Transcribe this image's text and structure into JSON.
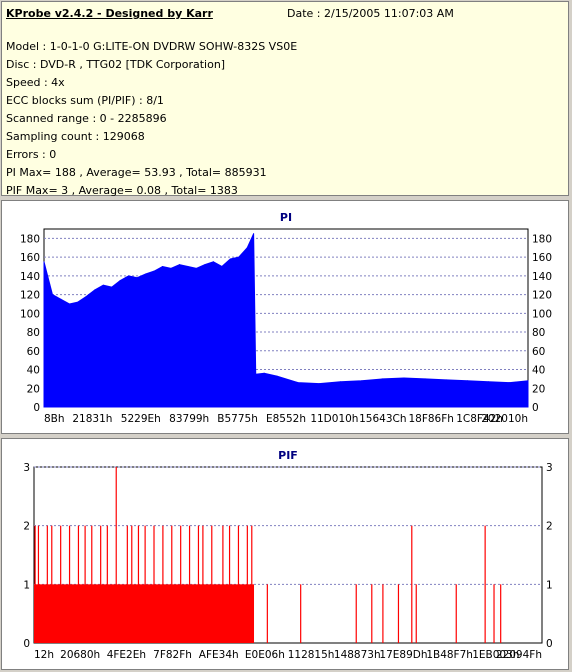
{
  "info": {
    "title": "KProbe v2.4.2 - Designed by Karr",
    "date": "Date : 2/15/2005 11:07:03 AM",
    "lines": [
      "Model : 1-0-1-0 G:LITE-ON DVDRW SOHW-832S  VS0E",
      "Disc : DVD-R , TTG02 [TDK Corporation]",
      "Speed : 4x",
      "ECC blocks sum (PI/PIF) : 8/1",
      "Scanned range : 0 - 2285896",
      "Sampling count : 129068",
      "Errors : 0",
      "PI Max= 188 , Average= 53.93 , Total= 885931",
      "PIF Max= 3 , Average= 0.08 , Total= 1383"
    ]
  },
  "chart_data": [
    {
      "type": "area",
      "title": "PI",
      "color": "#0000ff",
      "ylim": [
        0,
        190
      ],
      "yticks": [
        0,
        20,
        40,
        60,
        80,
        100,
        120,
        140,
        160,
        180
      ],
      "xlim": [
        0,
        2285896
      ],
      "xtick_labels": [
        "8Bh",
        "21831h",
        "5229Eh",
        "83799h",
        "B5775h",
        "E8552h",
        "11D010h",
        "15643Ch",
        "18F86Fh",
        "1C8F42h",
        "202010h"
      ],
      "x": [
        0,
        40000,
        80000,
        120000,
        160000,
        200000,
        240000,
        280000,
        320000,
        360000,
        400000,
        440000,
        480000,
        520000,
        560000,
        600000,
        640000,
        680000,
        720000,
        760000,
        800000,
        840000,
        880000,
        920000,
        960000,
        990000,
        1000000,
        1040000,
        1100000,
        1200000,
        1300000,
        1400000,
        1500000,
        1600000,
        1700000,
        1800000,
        1900000,
        2000000,
        2100000,
        2200000,
        2285896
      ],
      "y": [
        155,
        120,
        115,
        110,
        112,
        118,
        125,
        130,
        128,
        135,
        140,
        138,
        142,
        145,
        150,
        148,
        152,
        150,
        148,
        152,
        155,
        150,
        158,
        160,
        170,
        185,
        35,
        36,
        33,
        26,
        25,
        27,
        28,
        30,
        31,
        30,
        29,
        28,
        27,
        26,
        28
      ]
    },
    {
      "type": "bar",
      "title": "PIF",
      "color": "#ff0000",
      "ylim": [
        0,
        3
      ],
      "yticks": [
        0,
        1,
        2,
        3
      ],
      "xlim": [
        0,
        2285896
      ],
      "xtick_labels": [
        "12h",
        "20680h",
        "4FE2Eh",
        "7F82Fh",
        "AFE34h",
        "E0E06h",
        "112815h",
        "148873h",
        "17E89Dh",
        "1B48F7h",
        "1EB003h",
        "22094Fh"
      ],
      "baseline_x_end": 990000,
      "baseline_value": 1,
      "x": [
        5000,
        20000,
        60000,
        80000,
        120000,
        160000,
        200000,
        230000,
        260000,
        300000,
        330000,
        370000,
        420000,
        440000,
        470000,
        500000,
        540000,
        580000,
        620000,
        660000,
        700000,
        740000,
        760000,
        800000,
        850000,
        880000,
        920000,
        960000,
        980000,
        1050000,
        1200000,
        1450000,
        1520000,
        1570000,
        1640000,
        1700000,
        1720000,
        1900000,
        2030000,
        2070000,
        2100000
      ],
      "y": [
        2,
        2,
        2,
        2,
        2,
        2,
        2,
        2,
        2,
        2,
        2,
        3,
        2,
        2,
        2,
        2,
        2,
        2,
        2,
        2,
        2,
        2,
        2,
        2,
        2,
        2,
        2,
        2,
        2,
        1,
        1,
        1,
        1,
        1,
        1,
        2,
        1,
        1,
        2,
        1,
        1
      ]
    }
  ]
}
